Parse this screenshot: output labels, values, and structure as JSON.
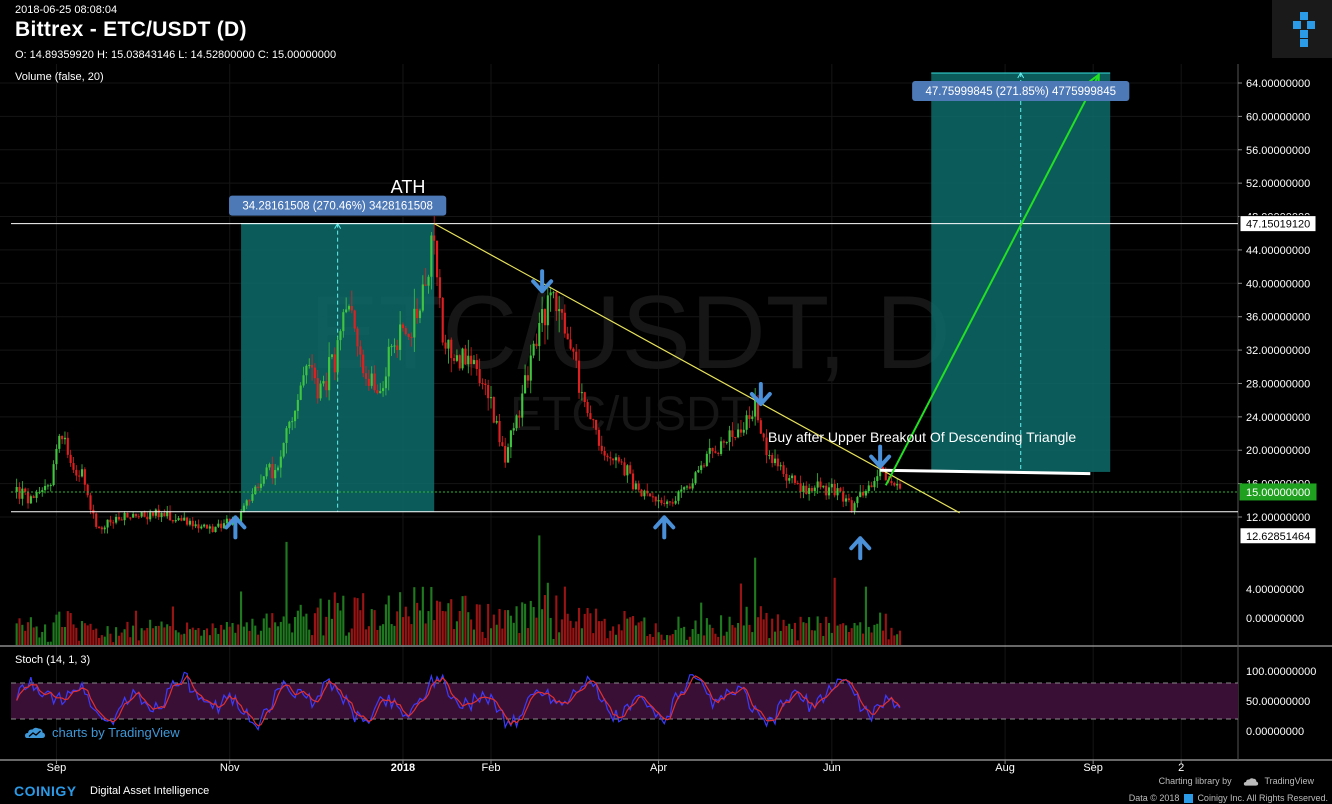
{
  "header": {
    "timestamp": "2018-06-25 08:08:04",
    "title": "Bittrex - ETC/USDT (D)",
    "ohlc": "O: 14.89359920 H: 15.03843146 L: 14.52800000 C: 15.00000000",
    "volume_indicator": "Volume (false, 20)",
    "stoch_indicator": "Stoch (14, 1, 3)"
  },
  "watermark": {
    "main": "ETC/USDT, D",
    "sub": "ETC/USDT"
  },
  "chart_data": {
    "type": "candlestick",
    "x_ticks": [
      {
        "label": "Sep",
        "date": "2017-09-01"
      },
      {
        "label": "Nov",
        "date": "2017-11-01"
      },
      {
        "label": "2018",
        "date": "2018-01-01"
      },
      {
        "label": "Feb",
        "date": "2018-02-01"
      },
      {
        "label": "Apr",
        "date": "2018-04-01"
      },
      {
        "label": "Jun",
        "date": "2018-06-01"
      },
      {
        "label": "Aug",
        "date": "2018-08-01"
      },
      {
        "label": "Sep",
        "date": "2018-09-01"
      },
      {
        "label": "2",
        "date": "2018-10-02"
      }
    ],
    "price_ticks": [
      "64.00000000",
      "60.00000000",
      "56.00000000",
      "52.00000000",
      "48.00000000",
      "44.00000000",
      "40.00000000",
      "36.00000000",
      "32.00000000",
      "28.00000000",
      "24.00000000",
      "20.00000000",
      "16.00000000",
      "12.00000000"
    ],
    "price_range": [
      8.0,
      66.0
    ],
    "volume_ticks": [
      "4.00000000",
      "0.00000000"
    ],
    "stoch_ticks": [
      "100.00000000",
      "50.00000000",
      "0.00000000"
    ],
    "stoch_bands": [
      80,
      20
    ],
    "price_path": [
      {
        "date": "2017-08-18",
        "price": 15
      },
      {
        "date": "2017-08-24",
        "price": 14
      },
      {
        "date": "2017-08-30",
        "price": 16
      },
      {
        "date": "2017-09-02",
        "price": 23
      },
      {
        "date": "2017-09-06",
        "price": 18
      },
      {
        "date": "2017-09-10",
        "price": 17
      },
      {
        "date": "2017-09-15",
        "price": 10.5
      },
      {
        "date": "2017-09-20",
        "price": 11.5
      },
      {
        "date": "2017-09-27",
        "price": 12
      },
      {
        "date": "2017-10-05",
        "price": 12.5
      },
      {
        "date": "2017-10-15",
        "price": 11.5
      },
      {
        "date": "2017-10-25",
        "price": 10.5
      },
      {
        "date": "2017-11-03",
        "price": 11.5
      },
      {
        "date": "2017-11-08",
        "price": 14
      },
      {
        "date": "2017-11-13",
        "price": 17
      },
      {
        "date": "2017-11-18",
        "price": 18
      },
      {
        "date": "2017-11-23",
        "price": 24
      },
      {
        "date": "2017-11-28",
        "price": 30
      },
      {
        "date": "2017-12-03",
        "price": 27
      },
      {
        "date": "2017-12-08",
        "price": 31
      },
      {
        "date": "2017-12-13",
        "price": 37
      },
      {
        "date": "2017-12-18",
        "price": 30
      },
      {
        "date": "2017-12-23",
        "price": 26
      },
      {
        "date": "2017-12-28",
        "price": 32
      },
      {
        "date": "2018-01-03",
        "price": 34
      },
      {
        "date": "2018-01-07",
        "price": 37
      },
      {
        "date": "2018-01-10",
        "price": 41
      },
      {
        "date": "2018-01-12",
        "price": 45
      },
      {
        "date": "2018-01-15",
        "price": 33
      },
      {
        "date": "2018-01-20",
        "price": 31
      },
      {
        "date": "2018-01-27",
        "price": 30
      },
      {
        "date": "2018-02-01",
        "price": 25
      },
      {
        "date": "2018-02-06",
        "price": 19
      },
      {
        "date": "2018-02-11",
        "price": 25
      },
      {
        "date": "2018-02-16",
        "price": 32
      },
      {
        "date": "2018-02-21",
        "price": 38
      },
      {
        "date": "2018-02-26",
        "price": 36
      },
      {
        "date": "2018-03-03",
        "price": 30
      },
      {
        "date": "2018-03-08",
        "price": 23
      },
      {
        "date": "2018-03-14",
        "price": 19
      },
      {
        "date": "2018-03-20",
        "price": 18
      },
      {
        "date": "2018-03-25",
        "price": 15
      },
      {
        "date": "2018-04-01",
        "price": 13.5
      },
      {
        "date": "2018-04-06",
        "price": 14
      },
      {
        "date": "2018-04-12",
        "price": 16
      },
      {
        "date": "2018-04-18",
        "price": 19
      },
      {
        "date": "2018-04-24",
        "price": 21
      },
      {
        "date": "2018-04-30",
        "price": 22
      },
      {
        "date": "2018-05-05",
        "price": 25
      },
      {
        "date": "2018-05-10",
        "price": 19
      },
      {
        "date": "2018-05-16",
        "price": 17
      },
      {
        "date": "2018-05-22",
        "price": 15
      },
      {
        "date": "2018-05-28",
        "price": 15.5
      },
      {
        "date": "2018-06-03",
        "price": 15
      },
      {
        "date": "2018-06-08",
        "price": 13
      },
      {
        "date": "2018-06-13",
        "price": 15
      },
      {
        "date": "2018-06-18",
        "price": 17.5
      },
      {
        "date": "2018-06-25",
        "price": 15
      }
    ],
    "annotations": {
      "ath_label": "ATH",
      "ath_price": 47.1501912,
      "ath_price_label": "47.15019120",
      "support_price": 12.62851464,
      "support_price_label": "12.62851464",
      "current_price": 15.0,
      "current_price_label": "15.00000000",
      "measure_1": {
        "label": "34.28161508 (270.46%) 3428161508",
        "from_date": "2017-11-05",
        "to_date": "2018-01-12",
        "from_price": 12.63,
        "to_price": 47.15
      },
      "measure_2": {
        "label": "47.75999845 (271.85%) 4775999845",
        "from_date": "2018-07-06",
        "to_date": "2018-09-07",
        "from_price": 17.4,
        "to_price": 65.2
      },
      "trendline": {
        "from_date": "2018-01-12",
        "from_price": 47.15,
        "to_date": "2018-07-16",
        "to_price": 12.5
      },
      "breakout_line": {
        "from_date": "2018-06-18",
        "from_price": 17.6,
        "to_date": "2018-08-31",
        "to_price": 17.2
      },
      "projection_arrow": {
        "from_date": "2018-06-20",
        "from_price": 15.8,
        "to_date": "2018-09-03",
        "to_price": 65.0
      },
      "note": "Buy after Upper Breakout Of Descending Triangle",
      "arrows": [
        {
          "date": "2017-11-03",
          "price": 11,
          "dir": "up"
        },
        {
          "date": "2018-02-19",
          "price": 40,
          "dir": "down"
        },
        {
          "date": "2018-04-03",
          "price": 11,
          "dir": "up"
        },
        {
          "date": "2018-05-07",
          "price": 26.5,
          "dir": "down"
        },
        {
          "date": "2018-06-11",
          "price": 8.5,
          "dir": "up"
        },
        {
          "date": "2018-06-18",
          "price": 19,
          "dir": "down"
        }
      ]
    },
    "colors": {
      "up": "#3fc53f",
      "down": "#e02020",
      "vol_up": "#1f7a1f",
      "vol_down": "#9a1414",
      "measure_fill": "#0d6b6b",
      "trendline": "#e8e35a",
      "projection": "#22e022",
      "label_bg": "#4e79b7",
      "arrow": "#4a90d9",
      "stoch_fill": "#3a0f36",
      "stoch_k": "#3b3bff",
      "stoch_d": "#e03030"
    }
  },
  "footer": {
    "brand": "COINIGY",
    "tagline": "Digital Asset Intelligence",
    "charting_library": "Charting library by",
    "tradingview": "TradingView",
    "copyright": "Data © 2018",
    "copyright_company": "Coinigy Inc. All Rights Reserved.",
    "tv_credit": "charts by TradingView"
  }
}
